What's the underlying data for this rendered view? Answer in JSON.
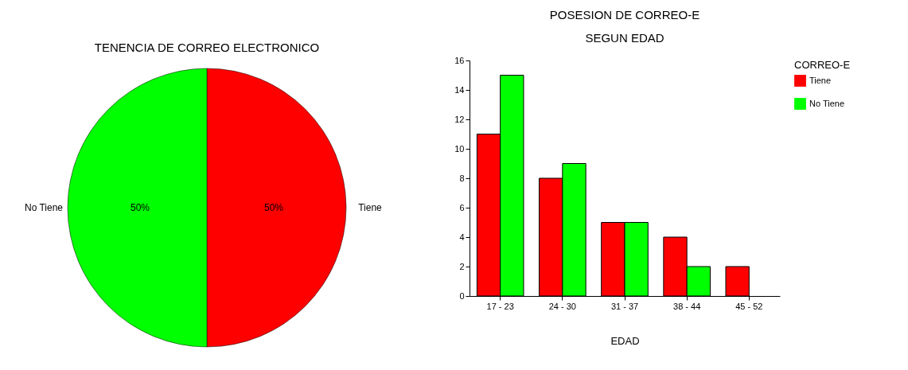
{
  "chart_data": [
    {
      "type": "pie",
      "title": "TENENCIA DE CORREO ELECTRONICO",
      "categories": [
        "Tiene",
        "No Tiene"
      ],
      "values": [
        50,
        50
      ],
      "colors": [
        "#ff0000",
        "#00ff00"
      ],
      "value_labels": [
        "50%",
        "50%"
      ]
    },
    {
      "type": "bar",
      "title": "POSESION DE CORREO-E",
      "subtitle": "SEGUN EDAD",
      "xlabel": "EDAD",
      "legend_title": "CORREO-E",
      "legend": "right",
      "grid": false,
      "categories": [
        "17 - 23",
        "24 - 30",
        "31 - 37",
        "38 - 44",
        "45 - 52"
      ],
      "ylim": [
        0,
        16
      ],
      "yticks": [
        0,
        2,
        4,
        6,
        8,
        10,
        12,
        14,
        16
      ],
      "series": [
        {
          "name": "Tiene",
          "color": "#ff0000",
          "values": [
            11,
            8,
            5,
            4,
            2
          ]
        },
        {
          "name": "No Tiene",
          "color": "#00ff00",
          "values": [
            15,
            9,
            5,
            2,
            null
          ]
        }
      ]
    }
  ]
}
